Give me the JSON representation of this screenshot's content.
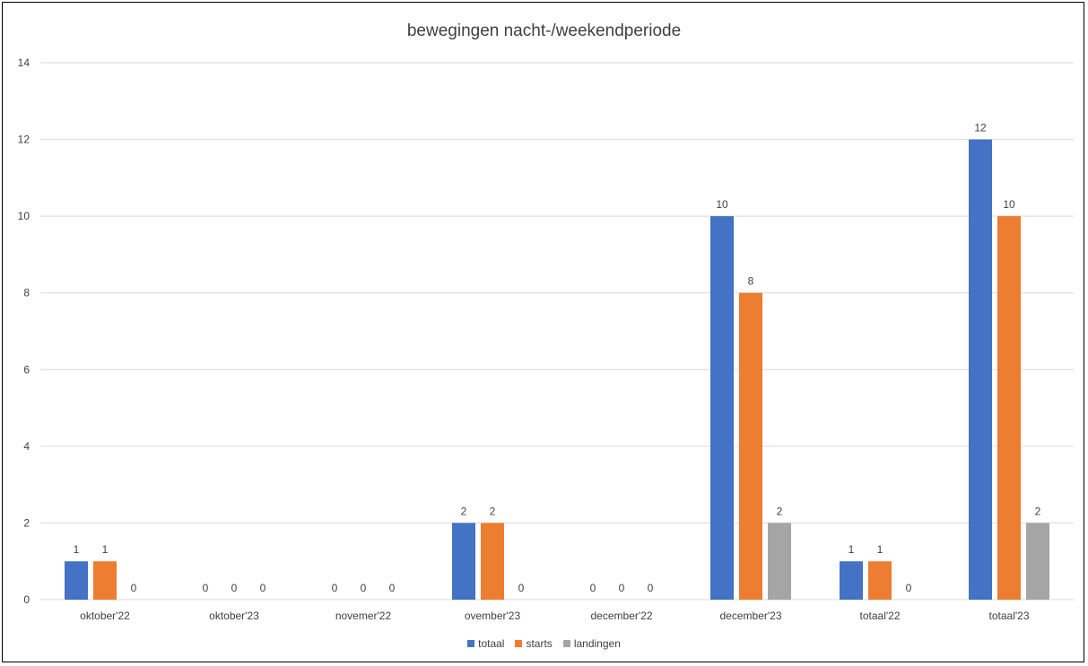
{
  "chart_data": {
    "type": "bar",
    "title": "bewegingen nacht-/weekendperiode",
    "categories": [
      "oktober'22",
      "oktober'23",
      "novemer'22",
      "ovember'23",
      "december'22",
      "december'23",
      "totaal'22",
      "totaal'23"
    ],
    "series": [
      {
        "name": "totaal",
        "color": "#4472C4",
        "values": [
          1,
          0,
          0,
          2,
          0,
          10,
          1,
          12
        ]
      },
      {
        "name": "starts",
        "color": "#ED7D31",
        "values": [
          1,
          0,
          0,
          2,
          0,
          8,
          1,
          10
        ]
      },
      {
        "name": "landingen",
        "color": "#A5A5A5",
        "values": [
          0,
          0,
          0,
          0,
          0,
          2,
          0,
          2
        ]
      }
    ],
    "ylim": [
      0,
      14
    ],
    "yticks": [
      0,
      2,
      4,
      6,
      8,
      10,
      12,
      14
    ],
    "grid": true,
    "legend_position": "bottom"
  }
}
